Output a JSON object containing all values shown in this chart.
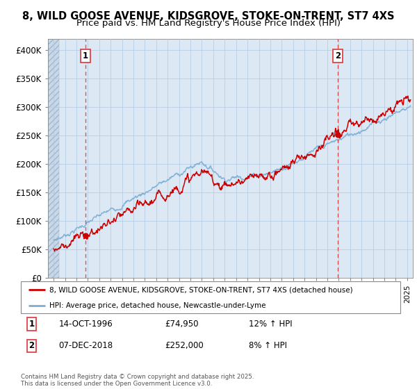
{
  "title_line1": "8, WILD GOOSE AVENUE, KIDSGROVE, STOKE-ON-TRENT, ST7 4XS",
  "title_line2": "Price paid vs. HM Land Registry's House Price Index (HPI)",
  "ylim": [
    0,
    420000
  ],
  "yticks": [
    0,
    50000,
    100000,
    150000,
    200000,
    250000,
    300000,
    350000,
    400000
  ],
  "ytick_labels": [
    "£0",
    "£50K",
    "£100K",
    "£150K",
    "£200K",
    "£250K",
    "£300K",
    "£350K",
    "£400K"
  ],
  "sale1_year": 1996.79,
  "sale1_price": 74950,
  "sale1_label": "1",
  "sale1_date": "14-OCT-1996",
  "sale1_hpi_pct": "12% ↑ HPI",
  "sale2_year": 2018.92,
  "sale2_price": 252000,
  "sale2_label": "2",
  "sale2_date": "07-DEC-2018",
  "sale2_hpi_pct": "8% ↑ HPI",
  "line_color_red": "#cc0000",
  "line_color_blue": "#7aadd4",
  "vline_color": "#dd4444",
  "dot_color": "#cc0000",
  "legend_label_red": "8, WILD GOOSE AVENUE, KIDSGROVE, STOKE-ON-TRENT, ST7 4XS (detached house)",
  "legend_label_blue": "HPI: Average price, detached house, Newcastle-under-Lyme",
  "footnote": "Contains HM Land Registry data © Crown copyright and database right 2025.\nThis data is licensed under the Open Government Licence v3.0.",
  "bg_color": "#dce9f5",
  "grid_color": "#b0c8e0",
  "title_fontsize": 10.5,
  "subtitle_fontsize": 9.5
}
